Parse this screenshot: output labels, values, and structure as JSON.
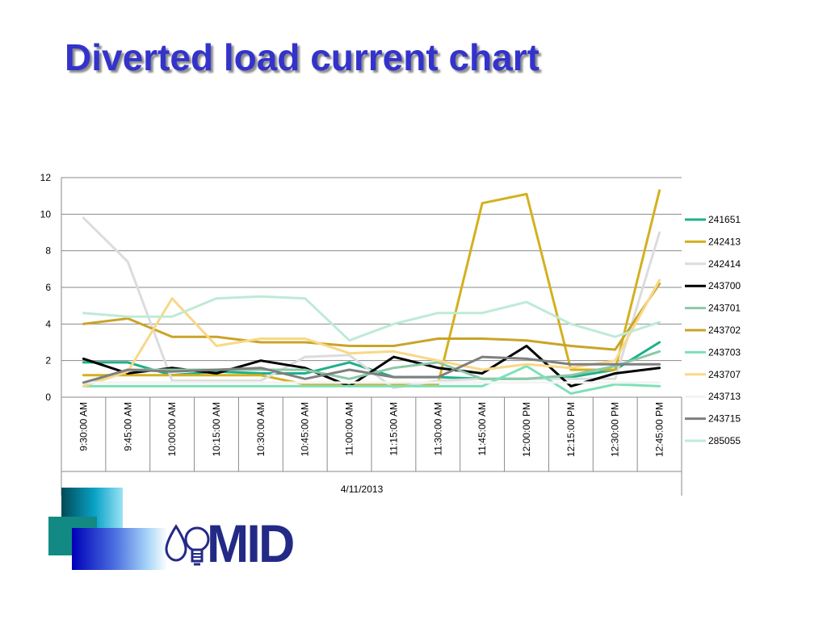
{
  "slide": {
    "title": "Diverted load current chart"
  },
  "logo": {
    "text": "MID"
  },
  "chart_data": {
    "type": "line",
    "title": "",
    "xlabel": "4/11/2013",
    "ylabel": "",
    "ylim": [
      0,
      12
    ],
    "yticks": [
      0,
      2,
      4,
      6,
      8,
      10,
      12
    ],
    "grid": true,
    "legend": "right",
    "categories": [
      "9:30:00 AM",
      "9:45:00 AM",
      "10:00:00 AM",
      "10:15:00 AM",
      "10:30:00 AM",
      "10:45:00 AM",
      "11:00:00 AM",
      "11:15:00 AM",
      "11:30:00 AM",
      "11:45:00 AM",
      "12:00:00 PM",
      "12:15:00 PM",
      "12:30:00 PM",
      "12:45:00 PM"
    ],
    "series": [
      {
        "name": "241651",
        "color": "#1fb08a",
        "values": [
          1.9,
          1.9,
          1.2,
          1.4,
          1.3,
          1.3,
          1.9,
          1.1,
          1.1,
          1.0,
          1.0,
          1.1,
          1.5,
          3.0
        ]
      },
      {
        "name": "242413",
        "color": "#d4b020",
        "values": [
          1.2,
          1.2,
          1.2,
          1.2,
          1.2,
          0.7,
          0.7,
          0.7,
          0.7,
          10.6,
          11.1,
          1.5,
          1.5,
          11.3
        ]
      },
      {
        "name": "242414",
        "color": "#dcdcdc",
        "values": [
          9.8,
          7.4,
          0.9,
          0.9,
          0.9,
          2.2,
          2.3,
          0.5,
          0.9,
          1.0,
          1.0,
          1.0,
          1.0,
          9.0
        ]
      },
      {
        "name": "243700",
        "color": "#000000",
        "values": [
          2.1,
          1.3,
          1.6,
          1.3,
          2.0,
          1.6,
          0.6,
          2.2,
          1.6,
          1.3,
          2.8,
          0.6,
          1.3,
          1.6
        ]
      },
      {
        "name": "243701",
        "color": "#8cc8a8",
        "values": [
          0.6,
          1.5,
          1.5,
          1.5,
          1.5,
          1.5,
          1.0,
          1.6,
          1.9,
          1.0,
          1.0,
          1.2,
          1.7,
          2.5
        ]
      },
      {
        "name": "243702",
        "color": "#c9a428",
        "values": [
          4.0,
          4.3,
          3.3,
          3.3,
          3.0,
          3.0,
          2.8,
          2.8,
          3.2,
          3.2,
          3.1,
          2.8,
          2.6,
          6.2
        ]
      },
      {
        "name": "243703",
        "color": "#7ee0b8",
        "values": [
          0.6,
          0.6,
          0.6,
          0.6,
          0.6,
          0.6,
          0.6,
          0.6,
          0.6,
          0.6,
          1.7,
          0.2,
          0.7,
          0.6
        ]
      },
      {
        "name": "243707",
        "color": "#f8d888",
        "values": [
          0.6,
          1.4,
          5.4,
          2.8,
          3.2,
          3.2,
          2.4,
          2.5,
          2.0,
          1.5,
          1.8,
          1.6,
          2.0,
          6.4
        ]
      },
      {
        "name": "243713",
        "color": "#f4f4f4",
        "values": [
          0.8,
          0.8,
          0.8,
          0.8,
          0.8,
          0.8,
          0.8,
          0.8,
          0.8,
          0.8,
          0.8,
          0.8,
          0.8,
          0.8
        ]
      },
      {
        "name": "243715",
        "color": "#7f7f7f",
        "values": [
          0.8,
          1.5,
          1.4,
          1.5,
          1.6,
          1.0,
          1.5,
          1.1,
          1.1,
          2.2,
          2.1,
          1.8,
          1.8,
          1.8
        ]
      },
      {
        "name": "285055",
        "color": "#bfead6",
        "values": [
          4.6,
          4.4,
          4.4,
          5.4,
          5.5,
          5.4,
          3.1,
          4.0,
          4.6,
          4.6,
          5.2,
          4.0,
          3.3,
          4.1
        ]
      }
    ]
  }
}
